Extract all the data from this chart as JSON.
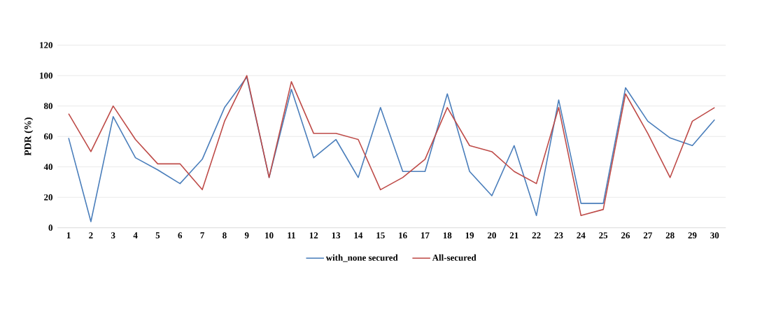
{
  "chart_data": {
    "type": "line",
    "ylabel": "PDR (%)",
    "categories": [
      "1",
      "2",
      "3",
      "4",
      "5",
      "6",
      "7",
      "8",
      "9",
      "10",
      "11",
      "12",
      "13",
      "14",
      "15",
      "16",
      "17",
      "18",
      "19",
      "20",
      "21",
      "22",
      "23",
      "24",
      "25",
      "26",
      "27",
      "28",
      "29",
      "30"
    ],
    "series": [
      {
        "name": "with_none secured",
        "color": "#4a7ebb",
        "values": [
          59,
          4,
          73,
          46,
          38,
          29,
          45,
          79,
          99,
          33,
          91,
          46,
          58,
          33,
          79,
          37,
          37,
          88,
          37,
          21,
          54,
          8,
          84,
          16,
          16,
          92,
          70,
          59,
          54,
          71
        ]
      },
      {
        "name": "All-secured",
        "color": "#be4b48",
        "values": [
          75,
          50,
          80,
          58,
          42,
          42,
          25,
          70,
          100,
          33,
          96,
          62,
          62,
          58,
          25,
          33,
          45,
          79,
          54,
          50,
          37,
          29,
          79,
          8,
          12,
          88,
          62,
          33,
          70,
          79
        ]
      }
    ],
    "ylim": [
      0,
      120
    ],
    "yticks": [
      0,
      20,
      40,
      60,
      80,
      100,
      120
    ],
    "grid": "y",
    "legend": "bottom",
    "marker": "none",
    "line_style": "solid"
  }
}
